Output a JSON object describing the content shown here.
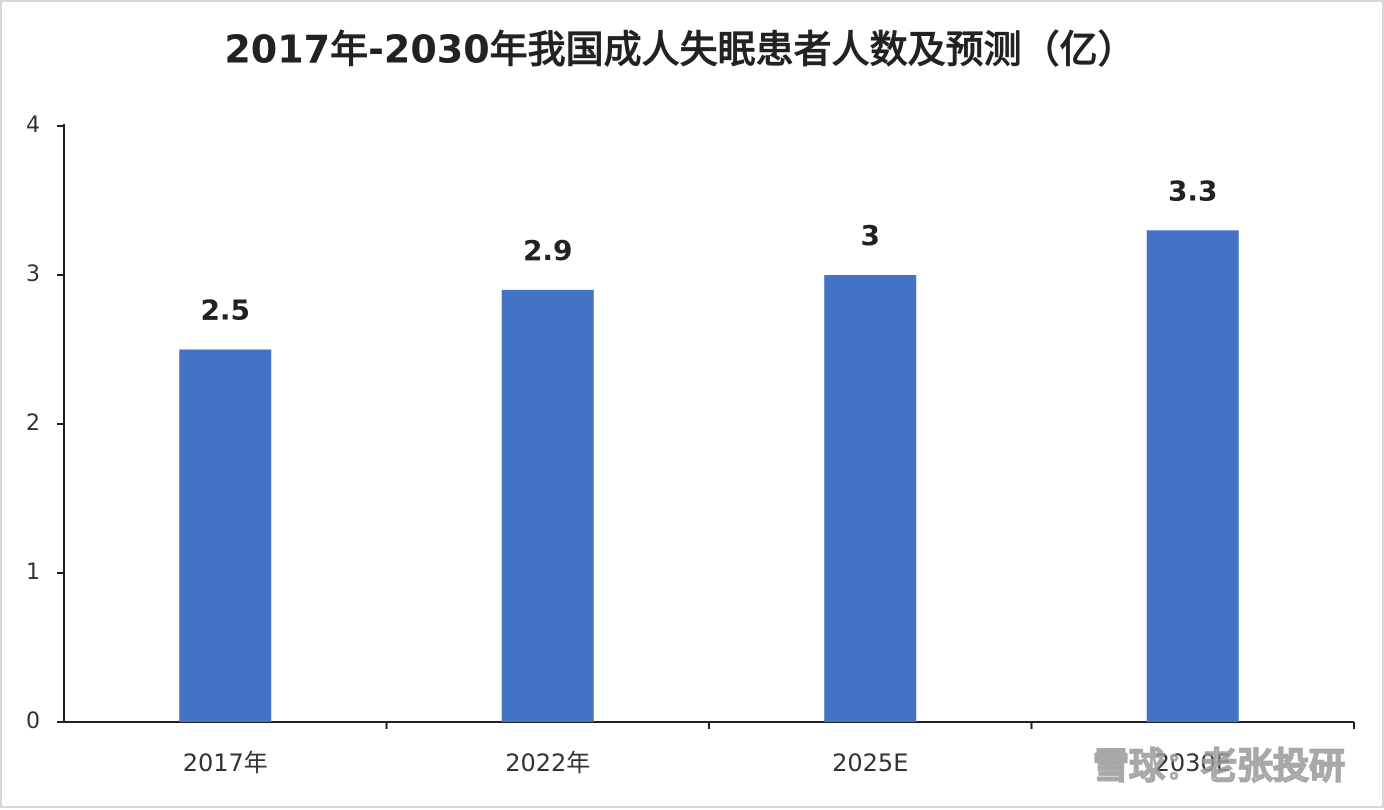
{
  "chart_data": {
    "type": "bar",
    "title": "2017年-2030年我国成人失眠患者人数及预测（亿）",
    "categories": [
      "2017年",
      "2022年",
      "2025E",
      "2030E"
    ],
    "values": [
      2.5,
      2.9,
      3,
      3.3
    ],
    "color": "#4472c4",
    "ylim": [
      0,
      4
    ],
    "yticks": [
      0,
      1,
      2,
      3,
      4
    ],
    "grid": false,
    "watermark": "雪球：老张投研"
  }
}
